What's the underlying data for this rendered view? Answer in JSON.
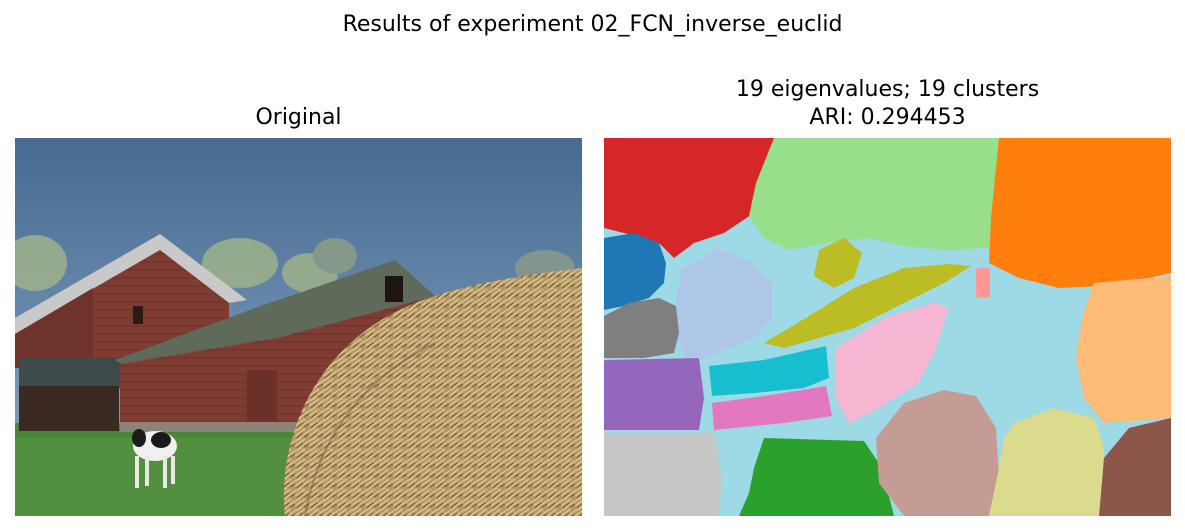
{
  "figure": {
    "title": "Results of experiment 02_FCN_inverse_euclid"
  },
  "left_panel": {
    "title": "Original"
  },
  "right_panel": {
    "title_line1": "19 eigenvalues; 19 clusters",
    "title_line2": "ARI: 0.294453"
  },
  "colors": {
    "sky": "#5a80a6",
    "barn_red": "#7d3b32",
    "roof_gray": "#5d6658",
    "hay": "#b09463",
    "grass": "#4e8a3a",
    "cluster_palette": [
      "#d62728",
      "#98df8a",
      "#ff7f0e",
      "#1f77b4",
      "#aec7e8",
      "#bcbd22",
      "#ff9896",
      "#7f7f7f",
      "#9edae5",
      "#ffbb78",
      "#17becf",
      "#f7b6d2",
      "#9467bd",
      "#e377c2",
      "#c5b0d5",
      "#c49c94",
      "#dbdb8d",
      "#2ca02c",
      "#8c564b",
      "#c7c7c7"
    ]
  }
}
